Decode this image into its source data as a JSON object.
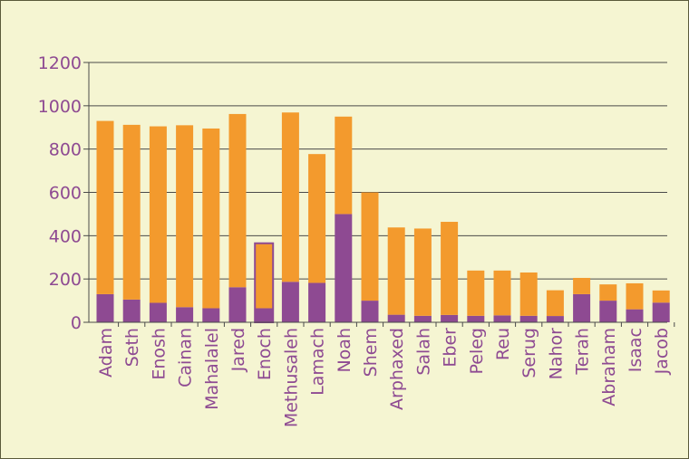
{
  "chart_data": {
    "type": "bar",
    "stacked": true,
    "categories": [
      "Adam",
      "Seth",
      "Enosh",
      "Cainan",
      "Mahalalel",
      "Jared",
      "Enoch",
      "Methusaleh",
      "Lamach",
      "Noah",
      "Shem",
      "Arphaxed",
      "Salah",
      "Eber",
      "Peleg",
      "Reu",
      "Serug",
      "Nahor",
      "Terah",
      "Abraham",
      "Isaac",
      "Jacob"
    ],
    "series": [
      {
        "values": [
          130,
          105,
          90,
          70,
          65,
          162,
          65,
          187,
          182,
          500,
          100,
          35,
          30,
          34,
          30,
          32,
          30,
          29,
          130,
          100,
          60,
          91
        ],
        "color": "#8e4a92"
      },
      {
        "values": [
          800,
          807,
          815,
          840,
          830,
          800,
          300,
          782,
          595,
          450,
          500,
          403,
          403,
          430,
          209,
          207,
          200,
          119,
          75,
          75,
          120,
          56
        ],
        "color": "#f39a2d"
      }
    ],
    "ylim": [
      0,
      1200
    ],
    "yticks": [
      0,
      200,
      400,
      600,
      800,
      1000,
      1200
    ],
    "grid": true,
    "highlight_category": "Enoch",
    "colors": {
      "background": "#f5f5d2",
      "grid": "#4a4a4a",
      "label": "#8e4a92",
      "highlight_border": "#8e4a92"
    }
  }
}
